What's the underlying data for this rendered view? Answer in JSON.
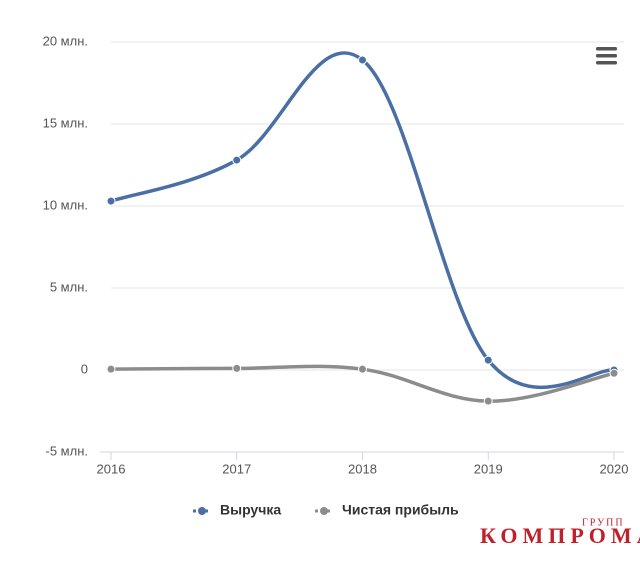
{
  "chart_data": {
    "type": "line",
    "x": [
      2016,
      2017,
      2018,
      2019,
      2020
    ],
    "xlim": [
      2016,
      2020
    ],
    "xticks": [
      2016,
      2017,
      2018,
      2019,
      2020
    ],
    "ylim": [
      -5,
      20
    ],
    "yticks": [
      {
        "value": -5,
        "label": "-5 млн."
      },
      0,
      {
        "value": 5,
        "label": "5 млн."
      },
      {
        "value": 10,
        "label": "10 млн."
      },
      {
        "value": 15,
        "label": "15 млн."
      },
      {
        "value": 20,
        "label": "20 млн."
      }
    ],
    "grid": true,
    "series": [
      {
        "name": "Выручка",
        "color": "#4a6fa5",
        "values": [
          10.3,
          12.8,
          18.9,
          0.6,
          0.0
        ]
      },
      {
        "name": "Чистая прибыль",
        "color": "#8c8c8c",
        "values": [
          0.05,
          0.1,
          0.05,
          -1.9,
          -0.2
        ]
      }
    ]
  },
  "watermark": {
    "main": "КОМПРОМАТ",
    "sub": "ГРУПП"
  }
}
